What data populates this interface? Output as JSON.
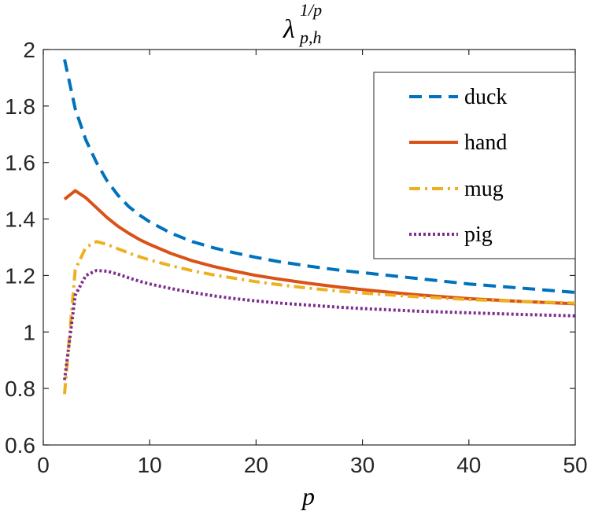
{
  "chart_data": {
    "type": "line",
    "title": {
      "base": "λ",
      "superscript": "1/p",
      "subscript": "p,h"
    },
    "xlabel": "p",
    "ylabel": "",
    "xlim": [
      0,
      50
    ],
    "ylim": [
      0.6,
      2
    ],
    "xticks": [
      0,
      10,
      20,
      30,
      40,
      50
    ],
    "yticks": [
      0.6,
      0.8,
      1,
      1.2,
      1.4,
      1.6,
      1.8,
      2
    ],
    "xtick_labels": [
      "0",
      "10",
      "20",
      "30",
      "40",
      "50"
    ],
    "ytick_labels": [
      "0.6",
      "0.8",
      "1",
      "1.2",
      "1.4",
      "1.6",
      "1.8",
      "2"
    ],
    "grid": false,
    "legend_position": "top-right",
    "x": [
      2,
      3,
      4,
      5,
      6,
      7,
      8,
      9,
      10,
      12,
      14,
      16,
      18,
      20,
      22,
      25,
      28,
      30,
      35,
      40,
      45,
      50
    ],
    "series": [
      {
        "name": "duck",
        "color": "#0072BD",
        "dash": "dashed",
        "values": [
          1.965,
          1.79,
          1.68,
          1.6,
          1.535,
          1.485,
          1.445,
          1.415,
          1.39,
          1.35,
          1.32,
          1.298,
          1.28,
          1.264,
          1.25,
          1.233,
          1.218,
          1.21,
          1.19,
          1.17,
          1.155,
          1.14
        ]
      },
      {
        "name": "hand",
        "color": "#D95319",
        "dash": "solid",
        "values": [
          1.47,
          1.5,
          1.475,
          1.44,
          1.405,
          1.375,
          1.35,
          1.328,
          1.31,
          1.278,
          1.252,
          1.232,
          1.215,
          1.2,
          1.188,
          1.172,
          1.158,
          1.15,
          1.132,
          1.118,
          1.108,
          1.1
        ]
      },
      {
        "name": "mug",
        "color": "#EDB120",
        "dash": "dashdot",
        "values": [
          0.78,
          1.22,
          1.3,
          1.32,
          1.31,
          1.295,
          1.28,
          1.267,
          1.255,
          1.235,
          1.217,
          1.202,
          1.19,
          1.178,
          1.168,
          1.155,
          1.144,
          1.138,
          1.125,
          1.115,
          1.108,
          1.102
        ]
      },
      {
        "name": "pig",
        "color": "#7E2F8E",
        "dash": "dotted",
        "values": [
          0.83,
          1.13,
          1.2,
          1.218,
          1.215,
          1.205,
          1.192,
          1.18,
          1.17,
          1.154,
          1.14,
          1.128,
          1.118,
          1.11,
          1.103,
          1.095,
          1.087,
          1.083,
          1.074,
          1.068,
          1.062,
          1.057
        ]
      }
    ]
  }
}
